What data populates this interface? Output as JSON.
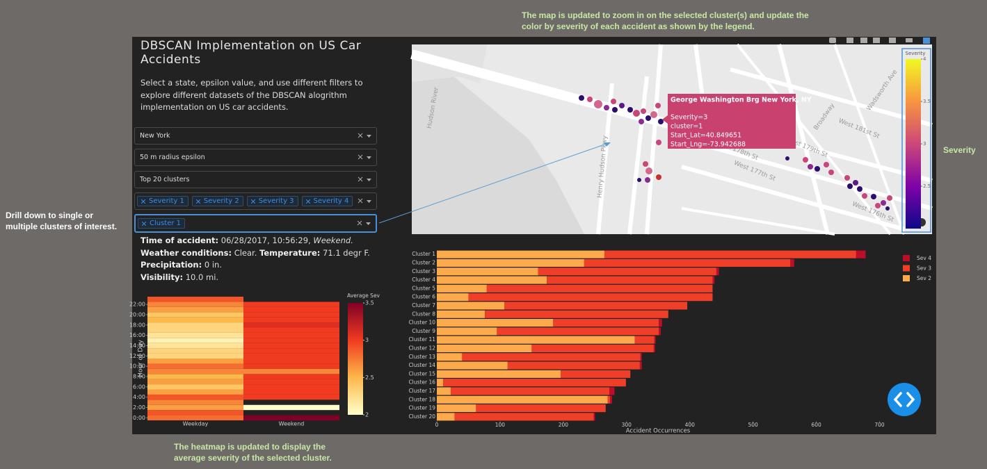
{
  "annotations": {
    "top": "The map is updated to zoom in on the selected cluster(s) and update the color by severity of  each accident as shown by the legend.",
    "left": "Drill down to single or multiple clusters of interest.",
    "bottom": "The heatmap is updated to display the average severity of the selected cluster.",
    "right": "Severity"
  },
  "header": {
    "title": "DBSCAN Implementation on US Car Accidents",
    "description": "Select a state, epsilon value, and use different filters to explore different datasets of the DBSCAN alogrithm implementation on US car accidents."
  },
  "filters": {
    "state": "New York",
    "epsilon": "50 m radius epsilon",
    "clusters": "Top 20 clusters",
    "severity": [
      "Severity 1",
      "Severity 2",
      "Severity 3",
      "Severity 4"
    ],
    "selected": [
      "Cluster 1"
    ]
  },
  "info": [
    "Time of accident:",
    "06/28/2017, 10:56:29,",
    "Weekend.",
    "Weather conditions:",
    "Clear.",
    "Temperature:",
    "71.1 degr F.",
    "Precipitation:",
    "0 in.",
    "Visibility:",
    "10.0 mi."
  ],
  "map": {
    "labels": [
      "Hudson River",
      "Henry Hudson Pkwy",
      "Broadway",
      "West 178th St",
      "West 177th St",
      "West 179th St",
      "Wadsworth Ave",
      "West 181st St",
      "West 176th St"
    ],
    "tooltip": {
      "title": "George Washington Brg New York, NY",
      "lines": [
        "Severity=3",
        "cluster=1",
        "Start_Lat=40.849651",
        "Start_Lng=-73.942688"
      ]
    },
    "colorbar": {
      "title": "Severity",
      "zlim": [
        2,
        4
      ],
      "ticks": [
        2.5,
        3,
        3.5,
        4
      ],
      "colorscale": [
        "#0d0887",
        "#7e03a8",
        "#cc4778",
        "#f89540",
        "#f0f921"
      ]
    }
  },
  "chart_data": [
    {
      "type": "heatmap",
      "x": [
        "Weekday",
        "Weekend"
      ],
      "y": [
        0,
        1,
        2,
        3,
        4,
        5,
        6,
        7,
        8,
        9,
        10,
        11,
        12,
        13,
        14,
        15,
        16,
        17,
        18,
        19,
        20,
        21,
        22,
        23
      ],
      "z": [
        [
          2.8,
          3.5
        ],
        [
          2.9,
          null
        ],
        [
          2.6,
          2.0
        ],
        [
          2.7,
          null
        ],
        [
          2.9,
          3.0
        ],
        [
          2.6,
          3.0
        ],
        [
          2.4,
          3.0
        ],
        [
          2.6,
          3.0
        ],
        [
          2.5,
          3.0
        ],
        [
          2.7,
          2.7
        ],
        [
          2.8,
          3.0
        ],
        [
          2.6,
          3.0
        ],
        [
          2.3,
          3.0
        ],
        [
          2.3,
          3.0
        ],
        [
          2.2,
          3.0
        ],
        [
          2.1,
          3.0
        ],
        [
          2.2,
          3.0
        ],
        [
          2.3,
          3.0
        ],
        [
          2.3,
          3.1
        ],
        [
          2.5,
          3.0
        ],
        [
          2.4,
          3.0
        ],
        [
          2.6,
          3.0
        ],
        [
          2.7,
          3.0
        ],
        [
          2.9,
          null
        ]
      ],
      "ylabel": "Hour of Day",
      "ylim": [
        -0.5,
        23.5
      ],
      "yticks": [
        {
          "value": 0,
          "label": "0:00"
        },
        {
          "value": 2,
          "label": "2:00"
        },
        {
          "value": 4,
          "label": "4:00"
        },
        {
          "value": 6,
          "label": "6:00"
        },
        {
          "value": 8,
          "label": "8:00"
        },
        {
          "value": 10,
          "label": "10:00"
        },
        {
          "value": 12,
          "label": "12:00"
        },
        {
          "value": 14,
          "label": "14:00"
        },
        {
          "value": 16,
          "label": "16:00"
        },
        {
          "value": 18,
          "label": "18:00"
        },
        {
          "value": 20,
          "label": "20:00"
        },
        {
          "value": 22,
          "label": "22:00"
        }
      ],
      "colorbar": {
        "title": "Average Sev",
        "zlim": [
          2,
          3.5
        ],
        "ticks": [
          2,
          2.5,
          3,
          3.5
        ],
        "colorscale": [
          "#ffffcc",
          "#fdb84a",
          "#f03b20",
          "#800026"
        ]
      }
    },
    {
      "type": "bar",
      "orientation": "horizontal",
      "stacked": true,
      "categories": [
        "Cluster 1",
        "Cluster 2",
        "Cluster 3",
        "Cluster 4",
        "Cluster 5",
        "Cluster 6",
        "Cluster 7",
        "Cluster 8",
        "Cluster 10",
        "Cluster 9",
        "Cluster 11",
        "Cluster 12",
        "Cluster 13",
        "Cluster 14",
        "Cluster 15",
        "Cluster 16",
        "Cluster 17",
        "Cluster 18",
        "Cluster 19",
        "Cluster 20"
      ],
      "series": [
        {
          "name": "Sev 4",
          "color": "#bd0d2a",
          "values": [
            15,
            6,
            4,
            3,
            0,
            0,
            0,
            0,
            5,
            3,
            2,
            2,
            2,
            3,
            0,
            0,
            8,
            3,
            0,
            2
          ]
        },
        {
          "name": "Sev 3",
          "color": "#f03f28",
          "values": [
            398,
            326,
            282,
            262,
            357,
            386,
            289,
            290,
            167,
            256,
            31,
            193,
            282,
            209,
            110,
            289,
            251,
            4,
            205,
            220
          ]
        },
        {
          "name": "Sev 2",
          "color": "#fcaa4c",
          "values": [
            265,
            233,
            160,
            174,
            79,
            50,
            107,
            76,
            184,
            95,
            313,
            150,
            40,
            112,
            196,
            10,
            22,
            270,
            62,
            28
          ]
        }
      ],
      "xlabel": "Accident Occurrences",
      "xlim": [
        0,
        783
      ],
      "xticks": [
        0,
        100,
        200,
        300,
        400,
        500,
        600,
        700
      ]
    }
  ]
}
